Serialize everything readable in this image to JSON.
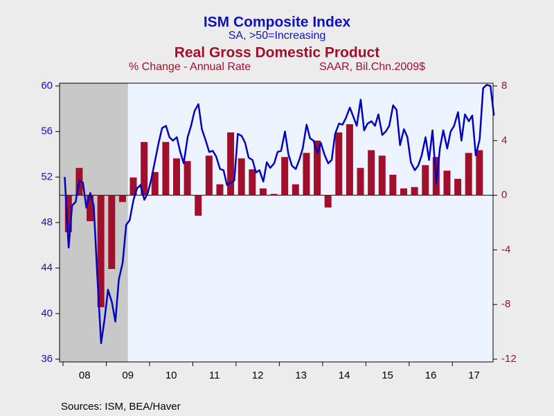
{
  "chart_data": {
    "type": "bar_line",
    "title": "ISM Composite Index",
    "subtitle": "SA, >50=Increasing",
    "title2": "Real Gross Domestic Product",
    "subtitle2_left": "% Change - Annual Rate",
    "subtitle2_right": "SAAR, Bil.Chn.2009$",
    "source": "Sources:  ISM, BEA/Haver",
    "xlim": [
      2007.92,
      2017.94
    ],
    "xticks": [
      {
        "value": 2008.5,
        "label": "08"
      },
      {
        "value": 2009.5,
        "label": "09"
      },
      {
        "value": 2010.5,
        "label": "10"
      },
      {
        "value": 2011.5,
        "label": "11"
      },
      {
        "value": 2012.5,
        "label": "12"
      },
      {
        "value": 2013.5,
        "label": "13"
      },
      {
        "value": 2014.5,
        "label": "14"
      },
      {
        "value": 2015.5,
        "label": "15"
      },
      {
        "value": 2016.5,
        "label": "16"
      },
      {
        "value": 2017.5,
        "label": "17"
      }
    ],
    "ylim": [
      36,
      60
    ],
    "yticks": [
      36,
      40,
      44,
      48,
      52,
      56,
      60
    ],
    "y2lim": [
      -12,
      8
    ],
    "y2ticks": [
      -12,
      -8,
      -4,
      0,
      4,
      8
    ],
    "recession": [
      2007.92,
      2009.5
    ],
    "series": [
      {
        "type": "line",
        "color": "#0000c0",
        "x": [
          2008.04,
          2008.13,
          2008.21,
          2008.29,
          2008.38,
          2008.46,
          2008.54,
          2008.63,
          2008.71,
          2008.79,
          2008.88,
          2008.96,
          2009.04,
          2009.13,
          2009.21,
          2009.29,
          2009.38,
          2009.46,
          2009.54,
          2009.63,
          2009.71,
          2009.79,
          2009.88,
          2009.96,
          2010.04,
          2010.13,
          2010.21,
          2010.29,
          2010.38,
          2010.46,
          2010.54,
          2010.63,
          2010.71,
          2010.79,
          2010.88,
          2010.96,
          2011.04,
          2011.13,
          2011.21,
          2011.29,
          2011.38,
          2011.46,
          2011.54,
          2011.63,
          2011.71,
          2011.79,
          2011.88,
          2011.96,
          2012.04,
          2012.13,
          2012.21,
          2012.29,
          2012.38,
          2012.46,
          2012.54,
          2012.63,
          2012.71,
          2012.79,
          2012.88,
          2012.96,
          2013.04,
          2013.13,
          2013.21,
          2013.29,
          2013.38,
          2013.46,
          2013.54,
          2013.63,
          2013.71,
          2013.79,
          2013.88,
          2013.96,
          2014.04,
          2014.13,
          2014.21,
          2014.29,
          2014.38,
          2014.46,
          2014.54,
          2014.63,
          2014.71,
          2014.79,
          2014.88,
          2014.96,
          2015.04,
          2015.13,
          2015.21,
          2015.29,
          2015.38,
          2015.46,
          2015.54,
          2015.63,
          2015.71,
          2015.79,
          2015.88,
          2015.96,
          2016.04,
          2016.13,
          2016.21,
          2016.29,
          2016.38,
          2016.46,
          2016.54,
          2016.63,
          2016.71,
          2016.79,
          2016.88,
          2016.96,
          2017.04,
          2017.13,
          2017.21,
          2017.29,
          2017.38,
          2017.46,
          2017.54,
          2017.63,
          2017.71,
          2017.79,
          2017.88,
          2017.96
        ],
        "values": [
          52.0,
          45.8,
          49.5,
          49.8,
          51.7,
          51.5,
          49.3,
          50.6,
          49.5,
          43.5,
          37.4,
          39.5,
          42.1,
          41.0,
          39.3,
          43.0,
          44.5,
          47.8,
          48.2,
          50.0,
          51.0,
          51.3,
          50.0,
          50.6,
          51.8,
          53.5,
          55.0,
          56.3,
          56.5,
          55.5,
          55.2,
          55.5,
          54.2,
          53.2,
          55.5,
          56.5,
          57.8,
          58.4,
          56.2,
          55.3,
          54.2,
          54.3,
          53.8,
          52.7,
          52.6,
          51.3,
          51.5,
          51.7,
          55.8,
          55.6,
          55.0,
          53.7,
          53.5,
          52.4,
          52.6,
          51.6,
          53.3,
          52.8,
          53.2,
          54.2,
          54.3,
          56.0,
          54.0,
          53.0,
          52.7,
          53.5,
          54.5,
          56.6,
          55.4,
          55.2,
          54.1,
          55.0,
          54.0,
          53.2,
          53.5,
          55.8,
          56.7,
          56.6,
          57.2,
          58.1,
          57.3,
          56.5,
          58.8,
          56.1,
          56.7,
          56.9,
          56.5,
          57.5,
          55.7,
          56.0,
          56.5,
          58.3,
          57.9,
          54.8,
          56.2,
          55.5,
          53.3,
          52.6,
          53.0,
          53.9,
          55.5,
          53.5,
          56.1,
          51.4,
          54.5,
          56.1,
          54.5,
          56.0,
          56.5,
          57.7,
          55.2,
          57.5,
          56.9,
          57.4,
          53.9,
          55.3,
          59.8,
          60.1,
          60.0,
          57.4
        ]
      },
      {
        "type": "bar",
        "axis": "y2",
        "color": "#a0102c",
        "x": [
          2008.125,
          2008.375,
          2008.625,
          2008.875,
          2009.125,
          2009.375,
          2009.625,
          2009.875,
          2010.125,
          2010.375,
          2010.625,
          2010.875,
          2011.125,
          2011.375,
          2011.625,
          2011.875,
          2012.125,
          2012.375,
          2012.625,
          2012.875,
          2013.125,
          2013.375,
          2013.625,
          2013.875,
          2014.125,
          2014.375,
          2014.625,
          2014.875,
          2015.125,
          2015.375,
          2015.625,
          2015.875,
          2016.125,
          2016.375,
          2016.625,
          2016.875,
          2017.125,
          2017.375,
          2017.625
        ],
        "values": [
          -2.7,
          2.0,
          -1.9,
          -8.2,
          -5.4,
          -0.5,
          1.3,
          3.9,
          1.7,
          3.9,
          2.7,
          2.5,
          -1.5,
          2.9,
          0.8,
          4.6,
          2.7,
          1.9,
          0.5,
          0.1,
          2.8,
          0.8,
          3.1,
          4.0,
          -0.9,
          4.6,
          5.2,
          2.0,
          3.3,
          2.9,
          1.5,
          0.5,
          0.6,
          2.2,
          2.8,
          1.8,
          1.2,
          3.1,
          3.3
        ]
      }
    ]
  }
}
